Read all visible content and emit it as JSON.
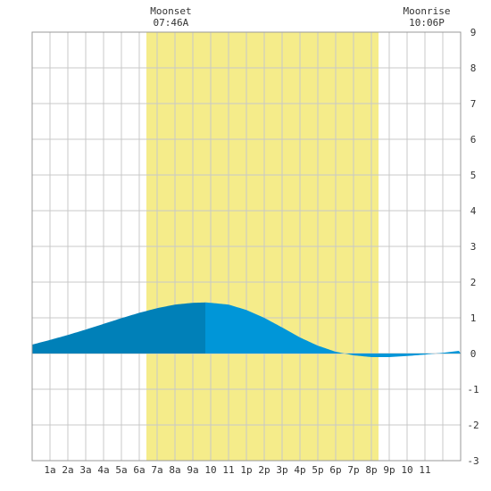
{
  "chart_data": {
    "type": "area",
    "title": "",
    "xlabel": "",
    "ylabel": "",
    "x_range_hours": [
      0,
      24
    ],
    "ylim": [
      -3,
      9
    ],
    "y_ticks": [
      "9",
      "8",
      "7",
      "6",
      "5",
      "4",
      "3",
      "2",
      "1",
      "0",
      "-1",
      "-2",
      "-3"
    ],
    "x_tick_labels": [
      "1a",
      "2a",
      "3a",
      "4a",
      "5a",
      "6a",
      "7a",
      "8a",
      "9a",
      "10",
      "11",
      "1p",
      "2p",
      "3p",
      "4p",
      "5p",
      "6p",
      "7p",
      "8p",
      "9p",
      "10",
      "11"
    ],
    "grid": true,
    "daylight": {
      "start_hour": 6.4,
      "end_hour": 19.4,
      "color": "#f5ec8a"
    },
    "annotations": [
      {
        "name": "Moonset",
        "time": "07:46A",
        "hour": 7.77
      },
      {
        "name": "Moonrise",
        "time": "10:06P",
        "hour": 22.1
      }
    ],
    "tide": {
      "x": [
        0,
        1,
        2,
        3,
        4,
        5,
        6,
        7,
        8,
        9,
        9.7,
        10,
        11,
        12,
        13,
        14,
        15,
        16,
        17,
        18,
        19,
        20,
        21,
        22,
        23,
        24
      ],
      "y": [
        0.25,
        0.38,
        0.52,
        0.67,
        0.83,
        0.99,
        1.14,
        1.27,
        1.37,
        1.42,
        1.43,
        1.42,
        1.37,
        1.22,
        1.0,
        0.73,
        0.45,
        0.22,
        0.05,
        -0.05,
        -0.1,
        -0.1,
        -0.07,
        -0.03,
        0.02,
        0.08
      ],
      "split_hour": 9.7,
      "rising_color": "#0080b8",
      "falling_color": "#0096d8"
    }
  }
}
